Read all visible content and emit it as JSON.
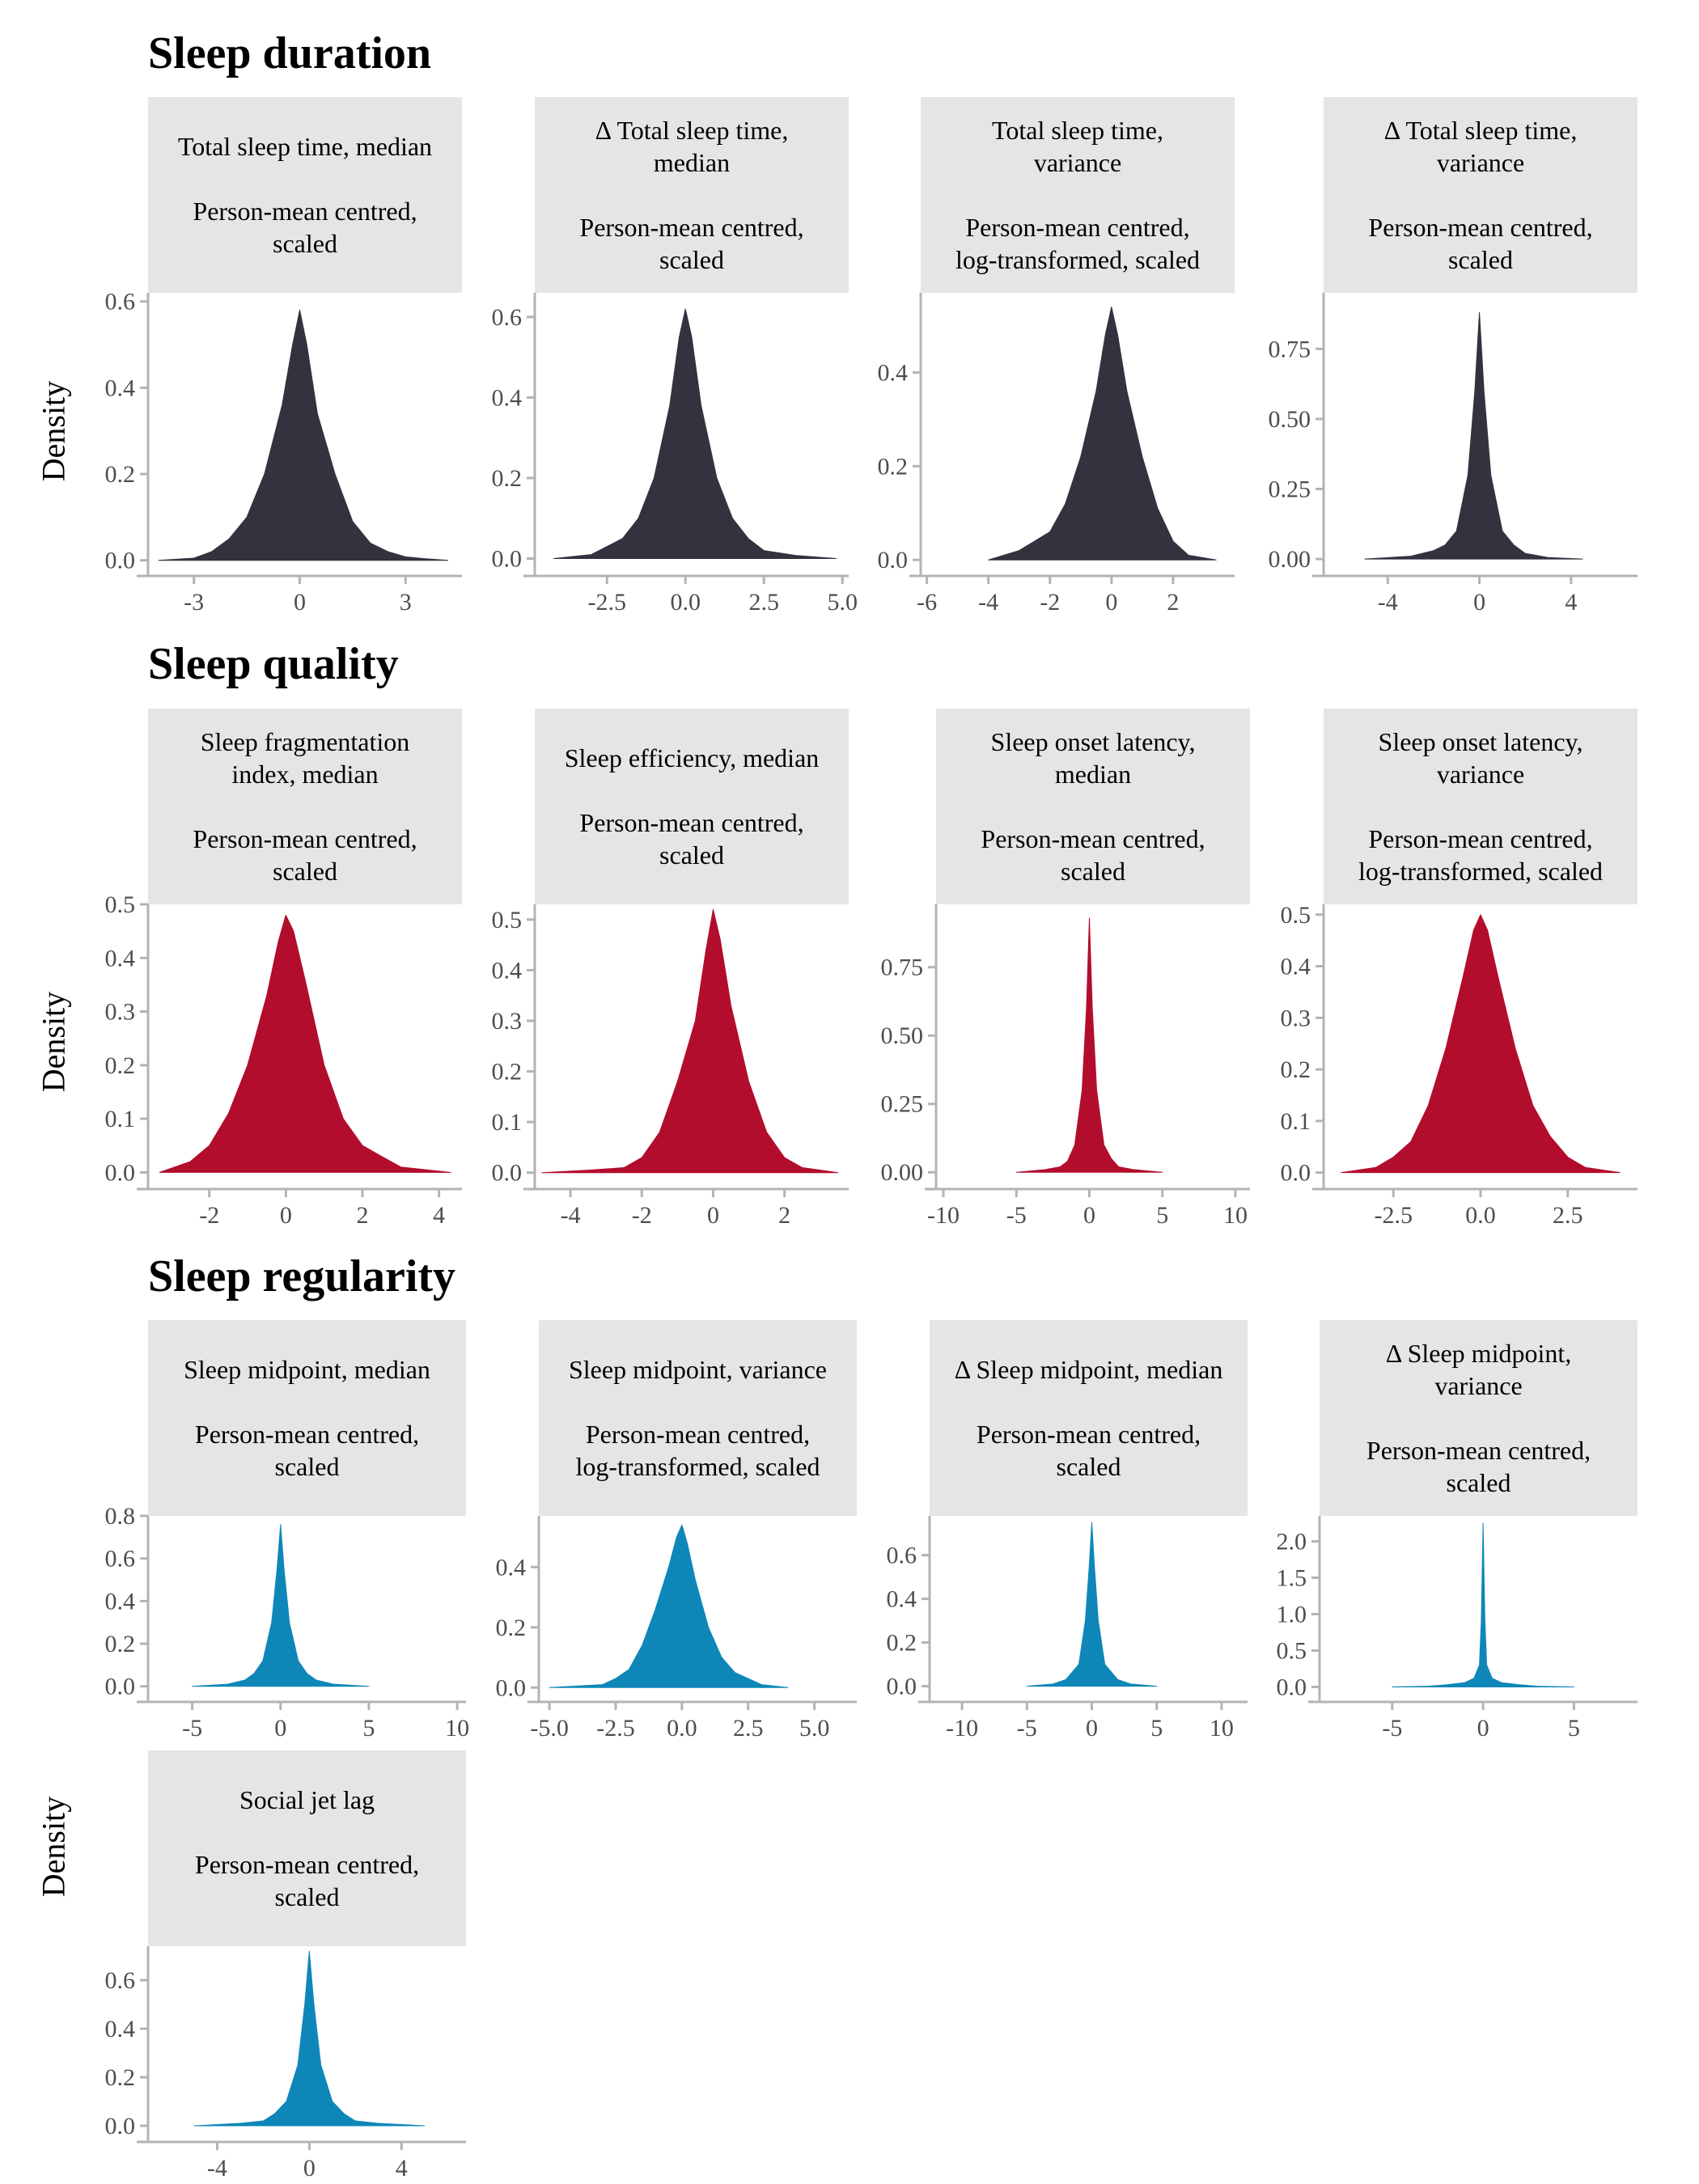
{
  "sections": [
    {
      "title": "Sleep duration",
      "ylabel": "Density"
    },
    {
      "title": "Sleep quality",
      "ylabel": "Density"
    },
    {
      "title": "Sleep regularity",
      "ylabel": "Density"
    },
    {
      "title": "",
      "ylabel": "Density"
    }
  ],
  "colors": {
    "duration": "#32333f",
    "quality": "#b30d2d",
    "regularity": "#0e87b8",
    "axis": "#b3b3b3",
    "strip": "#e5e5e5"
  },
  "chart_data": [
    {
      "type": "area",
      "title_l1": "Total sleep time, median",
      "title_l2": "Person-mean centred,\nscaled",
      "color": "duration",
      "xlim": [
        -4.3,
        4.6
      ],
      "ylim": [
        -0.01,
        0.62
      ],
      "xticks": [
        -3,
        0,
        3
      ],
      "xtick_labels": [
        "-3",
        "0",
        "3"
      ],
      "yticks": [
        0,
        0.2,
        0.4,
        0.6
      ],
      "ytick_labels": [
        "0.0",
        "0.2",
        "0.4",
        "0.6"
      ],
      "x": [
        -4.0,
        -3.0,
        -2.5,
        -2.0,
        -1.5,
        -1.0,
        -0.5,
        -0.2,
        0.0,
        0.2,
        0.5,
        1.0,
        1.5,
        2.0,
        2.5,
        3.0,
        3.5,
        4.2
      ],
      "y": [
        0.0,
        0.005,
        0.02,
        0.05,
        0.1,
        0.2,
        0.36,
        0.5,
        0.58,
        0.5,
        0.34,
        0.2,
        0.09,
        0.04,
        0.02,
        0.008,
        0.004,
        0.0
      ]
    },
    {
      "type": "area",
      "title_l1": "Δ Total sleep time,\nmedian",
      "title_l2": "Person-mean centred,\nscaled",
      "color": "duration",
      "xlim": [
        -4.8,
        5.2
      ],
      "ylim": [
        -0.015,
        0.66
      ],
      "xticks": [
        -2.5,
        0,
        2.5,
        5
      ],
      "xtick_labels": [
        "-2.5",
        "0.0",
        "2.5",
        "5.0"
      ],
      "yticks": [
        0,
        0.2,
        0.4,
        0.6
      ],
      "ytick_labels": [
        "0.0",
        "0.2",
        "0.4",
        "0.6"
      ],
      "x": [
        -4.2,
        -3.0,
        -2.0,
        -1.5,
        -1.0,
        -0.5,
        -0.2,
        0.0,
        0.2,
        0.5,
        1.0,
        1.5,
        2.0,
        2.5,
        3.5,
        4.8
      ],
      "y": [
        0.0,
        0.01,
        0.05,
        0.1,
        0.2,
        0.38,
        0.55,
        0.62,
        0.55,
        0.38,
        0.2,
        0.1,
        0.05,
        0.02,
        0.008,
        0.0
      ]
    },
    {
      "type": "area",
      "title_l1": "Total sleep time,\nvariance",
      "title_l2": "Person-mean centred,\nlog-transformed, scaled",
      "color": "duration",
      "xlim": [
        -6.2,
        4.0
      ],
      "ylim": [
        -0.01,
        0.57
      ],
      "xticks": [
        -6,
        -4,
        -2,
        0,
        2
      ],
      "xtick_labels": [
        "-6",
        "-4",
        "-2",
        "0",
        "2"
      ],
      "yticks": [
        0,
        0.2,
        0.4
      ],
      "ytick_labels": [
        "0.0",
        "0.2",
        "0.4"
      ],
      "x": [
        -4.0,
        -3.0,
        -2.0,
        -1.5,
        -1.0,
        -0.5,
        -0.2,
        0.0,
        0.2,
        0.5,
        1.0,
        1.5,
        2.0,
        2.5,
        3.4
      ],
      "y": [
        0.0,
        0.02,
        0.06,
        0.12,
        0.22,
        0.36,
        0.48,
        0.54,
        0.48,
        0.36,
        0.22,
        0.11,
        0.04,
        0.01,
        0.0
      ]
    },
    {
      "type": "area",
      "title_l1": "Δ Total sleep time,\nvariance",
      "title_l2": "Person-mean centred,\nscaled",
      "color": "duration",
      "xlim": [
        -6.8,
        6.9
      ],
      "ylim": [
        -0.02,
        0.95
      ],
      "xticks": [
        -4,
        0,
        4
      ],
      "xtick_labels": [
        "-4",
        "0",
        "4"
      ],
      "yticks": [
        0,
        0.25,
        0.5,
        0.75
      ],
      "ytick_labels": [
        "0.00",
        "0.25",
        "0.50",
        "0.75"
      ],
      "x": [
        -5.0,
        -3.0,
        -2.0,
        -1.5,
        -1.0,
        -0.5,
        -0.2,
        0.0,
        0.2,
        0.5,
        1.0,
        1.5,
        2.0,
        3.0,
        4.5
      ],
      "y": [
        0.0,
        0.01,
        0.03,
        0.05,
        0.1,
        0.3,
        0.6,
        0.88,
        0.6,
        0.3,
        0.1,
        0.05,
        0.02,
        0.005,
        0.0
      ]
    },
    {
      "type": "area",
      "title_l1": "Sleep fragmentation\nindex, median",
      "title_l2": "Person-mean centred,\nscaled",
      "color": "quality",
      "xlim": [
        -3.6,
        4.6
      ],
      "ylim": [
        -0.01,
        0.5
      ],
      "xticks": [
        -2,
        0,
        2,
        4
      ],
      "xtick_labels": [
        "-2",
        "0",
        "2",
        "4"
      ],
      "yticks": [
        0,
        0.1,
        0.2,
        0.3,
        0.4,
        0.5
      ],
      "ytick_labels": [
        "0.0",
        "0.1",
        "0.2",
        "0.3",
        "0.4",
        "0.5"
      ],
      "x": [
        -3.3,
        -2.5,
        -2.0,
        -1.5,
        -1.0,
        -0.5,
        -0.2,
        0.0,
        0.2,
        0.5,
        1.0,
        1.5,
        2.0,
        2.5,
        3.0,
        4.3
      ],
      "y": [
        0.0,
        0.02,
        0.05,
        0.11,
        0.2,
        0.33,
        0.43,
        0.48,
        0.45,
        0.36,
        0.2,
        0.1,
        0.05,
        0.03,
        0.01,
        0.0
      ]
    },
    {
      "type": "area",
      "title_l1": "Sleep efficiency, median",
      "title_l2": "Person-mean centred,\nscaled",
      "color": "quality",
      "xlim": [
        -5.0,
        3.8
      ],
      "ylim": [
        -0.01,
        0.53
      ],
      "xticks": [
        -4,
        -2,
        0,
        2
      ],
      "xtick_labels": [
        "-4",
        "-2",
        "0",
        "2"
      ],
      "yticks": [
        0,
        0.1,
        0.2,
        0.3,
        0.4,
        0.5
      ],
      "ytick_labels": [
        "0.0",
        "0.1",
        "0.2",
        "0.3",
        "0.4",
        "0.5"
      ],
      "x": [
        -4.8,
        -3.5,
        -2.5,
        -2.0,
        -1.5,
        -1.0,
        -0.5,
        -0.2,
        0.0,
        0.2,
        0.5,
        1.0,
        1.5,
        2.0,
        2.5,
        3.5
      ],
      "y": [
        0.0,
        0.005,
        0.01,
        0.03,
        0.08,
        0.18,
        0.3,
        0.44,
        0.52,
        0.46,
        0.33,
        0.18,
        0.08,
        0.03,
        0.01,
        0.0
      ]
    },
    {
      "type": "area",
      "title_l1": "Sleep onset latency,\nmedian",
      "title_l2": "Person-mean centred,\nscaled",
      "color": "quality",
      "xlim": [
        -10.5,
        11.0
      ],
      "ylim": [
        -0.02,
        0.98
      ],
      "xticks": [
        -10,
        -5,
        0,
        5,
        10
      ],
      "xtick_labels": [
        "-10",
        "-5",
        "0",
        "5",
        "10"
      ],
      "yticks": [
        0,
        0.25,
        0.5,
        0.75
      ],
      "ytick_labels": [
        "0.00",
        "0.25",
        "0.50",
        "0.75"
      ],
      "x": [
        -5.0,
        -3.0,
        -2.0,
        -1.5,
        -1.0,
        -0.5,
        -0.2,
        0.0,
        0.2,
        0.5,
        1.0,
        1.5,
        2.0,
        3.0,
        5.0
      ],
      "y": [
        0.0,
        0.01,
        0.02,
        0.04,
        0.1,
        0.3,
        0.6,
        0.93,
        0.6,
        0.3,
        0.1,
        0.05,
        0.02,
        0.01,
        0.0
      ]
    },
    {
      "type": "area",
      "title_l1": "Sleep onset latency,\nvariance",
      "title_l2": "Person-mean centred,\nlog-transformed, scaled",
      "color": "quality",
      "xlim": [
        -4.5,
        4.5
      ],
      "ylim": [
        -0.01,
        0.52
      ],
      "xticks": [
        -2.5,
        0,
        2.5
      ],
      "xtick_labels": [
        "-2.5",
        "0.0",
        "2.5"
      ],
      "yticks": [
        0,
        0.1,
        0.2,
        0.3,
        0.4,
        0.5
      ],
      "ytick_labels": [
        "0.0",
        "0.1",
        "0.2",
        "0.3",
        "0.4",
        "0.5"
      ],
      "x": [
        -4.0,
        -3.0,
        -2.5,
        -2.0,
        -1.5,
        -1.0,
        -0.5,
        -0.2,
        0.0,
        0.2,
        0.5,
        1.0,
        1.5,
        2.0,
        2.5,
        3.0,
        4.0
      ],
      "y": [
        0.0,
        0.01,
        0.03,
        0.06,
        0.13,
        0.24,
        0.38,
        0.47,
        0.5,
        0.47,
        0.38,
        0.24,
        0.13,
        0.07,
        0.03,
        0.01,
        0.0
      ]
    },
    {
      "type": "area",
      "title_l1": "Sleep midpoint, median",
      "title_l2": "Person-mean centred,\nscaled",
      "color": "regularity",
      "xlim": [
        -7.5,
        10.5
      ],
      "ylim": [
        -0.02,
        0.8
      ],
      "xticks": [
        -5,
        0,
        5,
        10
      ],
      "xtick_labels": [
        "-5",
        "0",
        "5",
        "10"
      ],
      "yticks": [
        0,
        0.2,
        0.4,
        0.6,
        0.8
      ],
      "ytick_labels": [
        "0.0",
        "0.2",
        "0.4",
        "0.6",
        "0.8"
      ],
      "x": [
        -5.0,
        -3.0,
        -2.0,
        -1.5,
        -1.0,
        -0.5,
        -0.2,
        0.0,
        0.2,
        0.5,
        1.0,
        1.5,
        2.0,
        3.0,
        5.0
      ],
      "y": [
        0.0,
        0.01,
        0.03,
        0.06,
        0.12,
        0.3,
        0.55,
        0.76,
        0.55,
        0.3,
        0.12,
        0.06,
        0.03,
        0.01,
        0.0
      ]
    },
    {
      "type": "area",
      "title_l1": "Sleep midpoint, variance",
      "title_l2": "Person-mean centred,\nlog-transformed, scaled",
      "color": "regularity",
      "xlim": [
        -5.4,
        6.6
      ],
      "ylim": [
        -0.01,
        0.57
      ],
      "xticks": [
        -5,
        -2.5,
        0,
        2.5,
        5
      ],
      "xtick_labels": [
        "-5.0",
        "-2.5",
        "0.0",
        "2.5",
        "5.0"
      ],
      "yticks": [
        0,
        0.2,
        0.4
      ],
      "ytick_labels": [
        "0.0",
        "0.2",
        "0.4"
      ],
      "x": [
        -5.0,
        -3.0,
        -2.5,
        -2.0,
        -1.5,
        -1.0,
        -0.5,
        -0.2,
        0.0,
        0.2,
        0.5,
        1.0,
        1.5,
        2.0,
        2.5,
        3.0,
        4.0
      ],
      "y": [
        0.0,
        0.01,
        0.03,
        0.06,
        0.14,
        0.26,
        0.4,
        0.5,
        0.54,
        0.48,
        0.36,
        0.2,
        0.1,
        0.05,
        0.03,
        0.01,
        0.0
      ]
    },
    {
      "type": "area",
      "title_l1": "Δ Sleep midpoint, median",
      "title_l2": "Person-mean centred,\nscaled",
      "color": "regularity",
      "xlim": [
        -12.5,
        12.0
      ],
      "ylim": [
        -0.02,
        0.78
      ],
      "xticks": [
        -10,
        -5,
        0,
        5,
        10
      ],
      "xtick_labels": [
        "-10",
        "-5",
        "0",
        "5",
        "10"
      ],
      "yticks": [
        0,
        0.2,
        0.4,
        0.6
      ],
      "ytick_labels": [
        "0.0",
        "0.2",
        "0.4",
        "0.6"
      ],
      "x": [
        -5.0,
        -3.0,
        -2.0,
        -1.0,
        -0.5,
        -0.2,
        0.0,
        0.2,
        0.5,
        1.0,
        2.0,
        3.0,
        5.0
      ],
      "y": [
        0.0,
        0.01,
        0.03,
        0.1,
        0.3,
        0.55,
        0.75,
        0.55,
        0.3,
        0.1,
        0.03,
        0.01,
        0.0
      ]
    },
    {
      "type": "area",
      "title_l1": "Δ Sleep midpoint,\nvariance",
      "title_l2": "Person-mean centred,\nscaled",
      "color": "regularity",
      "xlim": [
        -9.0,
        8.5
      ],
      "ylim": [
        -0.05,
        2.35
      ],
      "xticks": [
        -5,
        0,
        5
      ],
      "xtick_labels": [
        "-5",
        "0",
        "5"
      ],
      "yticks": [
        0,
        0.5,
        1.0,
        1.5,
        2.0
      ],
      "ytick_labels": [
        "0.0",
        "0.5",
        "1.0",
        "1.5",
        "2.0"
      ],
      "x": [
        -5.0,
        -3.0,
        -2.0,
        -1.0,
        -0.5,
        -0.2,
        -0.1,
        0.0,
        0.1,
        0.2,
        0.5,
        1.0,
        2.0,
        3.0,
        5.0
      ],
      "y": [
        0.0,
        0.01,
        0.03,
        0.06,
        0.12,
        0.3,
        0.9,
        2.25,
        0.9,
        0.3,
        0.12,
        0.06,
        0.03,
        0.01,
        0.0
      ]
    },
    {
      "type": "area",
      "title_l1": "Social jet lag",
      "title_l2": "Person-mean centred,\nscaled",
      "color": "regularity",
      "xlim": [
        -7.0,
        6.8
      ],
      "ylim": [
        -0.02,
        0.74
      ],
      "xticks": [
        -4,
        0,
        4
      ],
      "xtick_labels": [
        "-4",
        "0",
        "4"
      ],
      "yticks": [
        0,
        0.2,
        0.4,
        0.6
      ],
      "ytick_labels": [
        "0.0",
        "0.2",
        "0.4",
        "0.6"
      ],
      "x": [
        -5.0,
        -3.0,
        -2.0,
        -1.5,
        -1.0,
        -0.5,
        -0.2,
        0.0,
        0.2,
        0.5,
        1.0,
        1.5,
        2.0,
        3.0,
        5.0
      ],
      "y": [
        0.0,
        0.01,
        0.02,
        0.05,
        0.1,
        0.25,
        0.5,
        0.72,
        0.5,
        0.25,
        0.1,
        0.05,
        0.02,
        0.01,
        0.0
      ]
    }
  ]
}
